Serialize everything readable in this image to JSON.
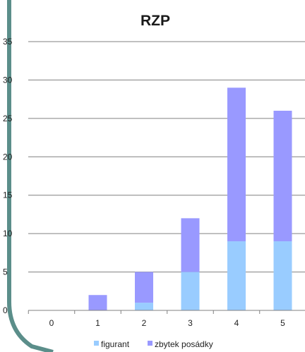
{
  "chart_data": {
    "type": "bar",
    "stacked": true,
    "title": "RZP",
    "categories": [
      "0",
      "1",
      "2",
      "3",
      "4",
      "5"
    ],
    "series": [
      {
        "name": "figurant",
        "values": [
          0,
          0,
          1,
          5,
          9,
          9
        ],
        "color": "#99ccff"
      },
      {
        "name": "zbytek posádky",
        "values": [
          0,
          2,
          4,
          7,
          20,
          17
        ],
        "color": "#9999ff"
      }
    ],
    "y_ticks": [
      "0",
      "5",
      "10",
      "15",
      "20",
      "25",
      "30",
      "35"
    ],
    "ylim": [
      0,
      35
    ],
    "grid": true,
    "legend_position": "bottom"
  },
  "colors": {
    "frame_border": "#5b8e8a",
    "grid": "#808080"
  }
}
